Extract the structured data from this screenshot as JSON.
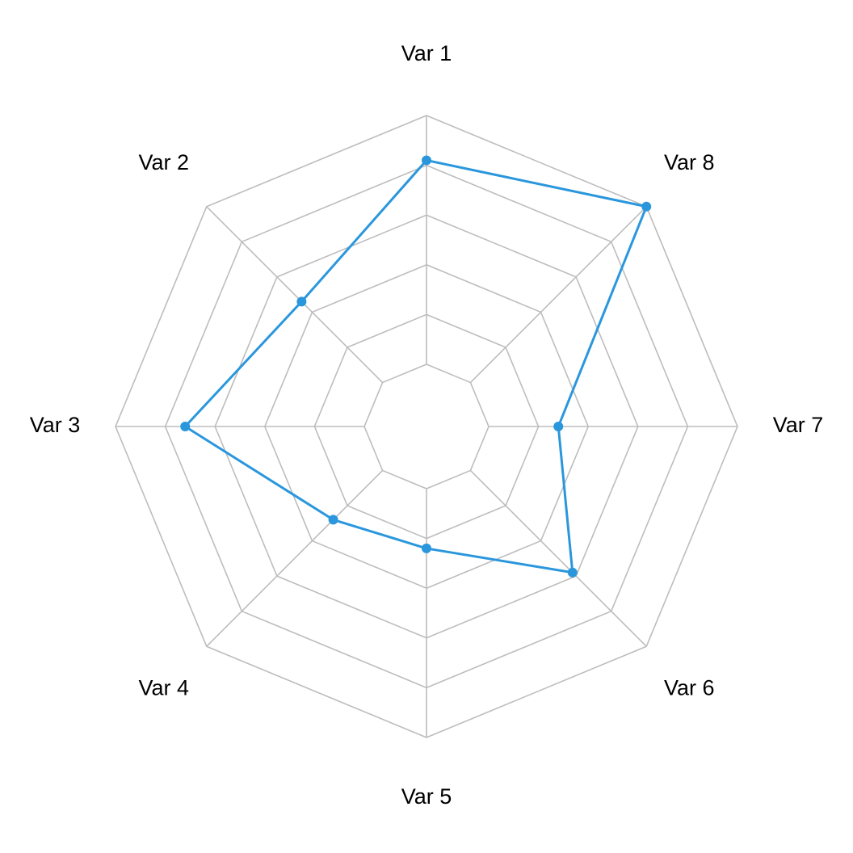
{
  "chart_data": {
    "type": "radar",
    "title": "",
    "axes": [
      "Var 1",
      "Var 2",
      "Var 3",
      "Var 4",
      "Var 5",
      "Var 6",
      "Var 7",
      "Var 8"
    ],
    "range": [
      0,
      5
    ],
    "rings": 5,
    "grid": true,
    "legend": "none",
    "series": [
      {
        "values": [
          4.1,
          2.3,
          3.6,
          1.4,
          1.2,
          2.9,
          1.4,
          5.0
        ],
        "color": "#2a97dd"
      }
    ]
  }
}
